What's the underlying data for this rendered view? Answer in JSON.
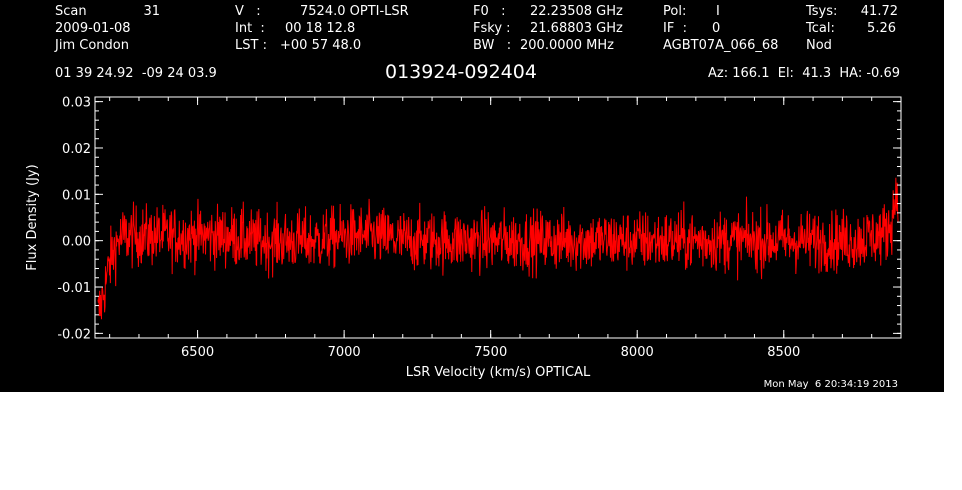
{
  "header": {
    "scan_label": "Scan",
    "scan_value": "31",
    "date": "2009-01-08",
    "observer": "Jim Condon",
    "v_label": "V   :",
    "v_value": "7524.0 OPTI-LSR",
    "int_label": "Int  :",
    "int_value": "00 18 12.8",
    "lst_label": "LST :",
    "lst_value": "+00 57 48.0",
    "f0_label": "F0   :",
    "f0_value": "22.23508 GHz",
    "fsky_label": "Fsky :",
    "fsky_value": "21.68803 GHz",
    "bw_label": "BW   :",
    "bw_value": "200.0000 MHz",
    "pol_label": "Pol:",
    "pol_value": "I",
    "if_label": "IF  :",
    "if_value": "0",
    "project": "AGBT07A_066_68",
    "tsys_label": "Tsys:",
    "tsys_value": "41.72",
    "tcal_label": "Tcal:",
    "tcal_value": "5.26",
    "mode": "Nod",
    "coords": "01 39 24.92  -09 24 03.9",
    "source": "013924-092404",
    "az_el_ha": "Az: 166.1  El:  41.3  HA: -0.69",
    "timestamp": "Mon May  6 20:34:19 2013"
  },
  "chart_data": {
    "type": "line",
    "xlabel": "LSR Velocity (km/s) OPTICAL",
    "ylabel": "Flux Density (Jy)",
    "xlim": [
      6150,
      8900
    ],
    "ylim": [
      -0.021,
      0.031
    ],
    "x_ticks": [
      6500,
      7000,
      7500,
      8000,
      8500
    ],
    "x_tick_labels": [
      "6500",
      "7000",
      "7500",
      "8000",
      "8500"
    ],
    "y_ticks": [
      -0.02,
      -0.01,
      0.0,
      0.01,
      0.02,
      0.03
    ],
    "y_tick_labels": [
      "-0.02",
      "-0.01",
      "0.00",
      "0.01",
      "0.02",
      "0.03"
    ],
    "grid": false,
    "background": "#000000",
    "axis_color": "#ffffff",
    "series": [
      {
        "color": "#ff0000",
        "x": [
          6160,
          6170,
          6180,
          6190,
          6200,
          6215,
          6230,
          6250,
          6300,
          6400,
          6500,
          6600,
          6700,
          6800,
          6900,
          7000,
          7100,
          7200,
          7300,
          7400,
          7500,
          7600,
          7700,
          7800,
          7900,
          8000,
          8100,
          8200,
          8300,
          8400,
          8500,
          8600,
          8700,
          8750,
          8800,
          8830,
          8850,
          8860,
          8870,
          8880,
          8890
        ],
        "y": [
          -0.016,
          -0.014,
          -0.011,
          -0.008,
          -0.005,
          -0.002,
          0.0,
          0.001,
          0.001,
          0.001,
          0.001,
          0.001,
          0.0,
          0.0,
          0.0,
          0.001,
          0.001,
          0.0,
          0.0,
          0.0,
          0.0,
          0.0,
          0.0,
          0.0,
          0.0,
          0.0,
          0.0,
          0.0,
          0.0,
          0.0,
          0.0,
          0.0,
          0.0,
          0.0,
          0.001,
          0.001,
          0.002,
          0.003,
          0.005,
          0.009,
          0.012
        ]
      }
    ]
  }
}
